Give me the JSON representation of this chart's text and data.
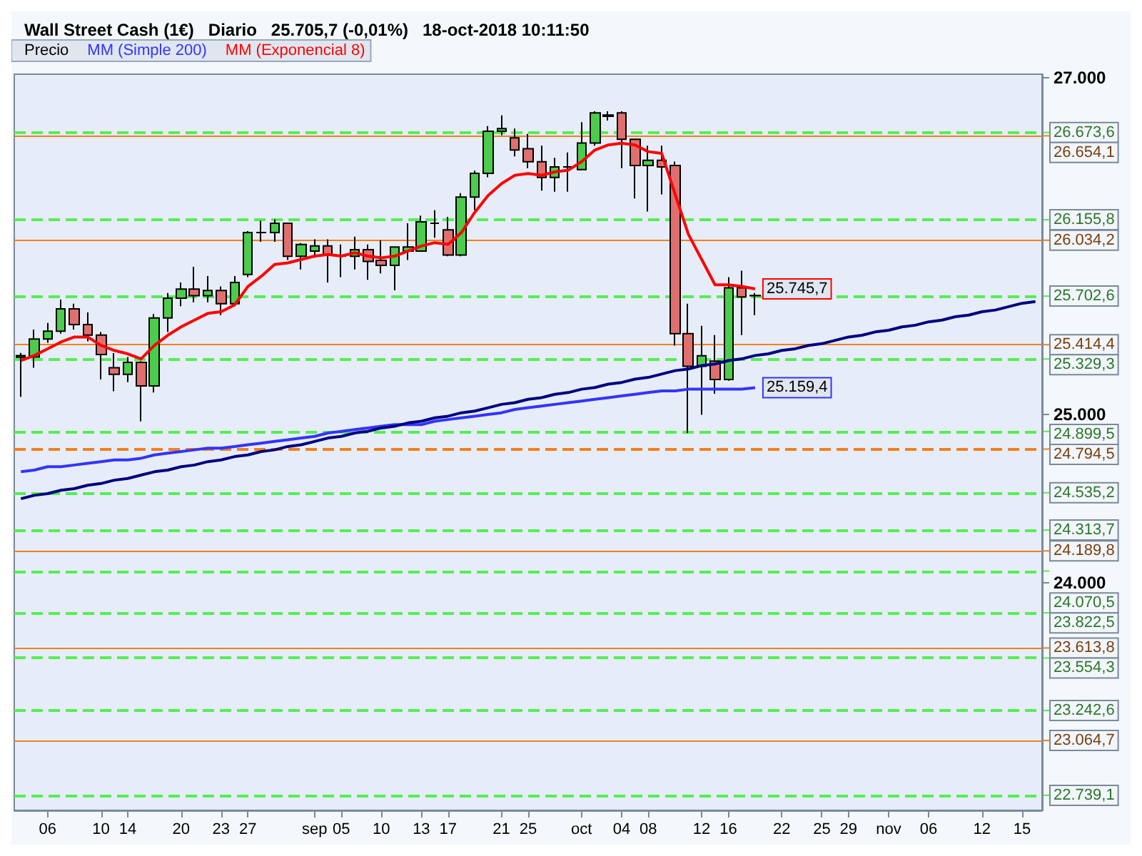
{
  "chart_data": {
    "type": "candlestick",
    "title": "Wall Street Cash (1€)   Diario   25.705,7 (-0,01%)   18-oct-2018 10:11:50",
    "categories": [
      null,
      null,
      "06",
      null,
      null,
      null,
      "10",
      null,
      "14",
      null,
      null,
      null,
      "20",
      null,
      null,
      "23",
      null,
      "27",
      null,
      null,
      null,
      null,
      "sep",
      null,
      "05",
      null,
      null,
      "10",
      null,
      null,
      "13",
      null,
      "17",
      null,
      null,
      null,
      "21",
      null,
      "25",
      null,
      null,
      null,
      "oct",
      null,
      null,
      "04",
      null,
      "08",
      null,
      null,
      null,
      "12",
      null,
      "16",
      null,
      null,
      null,
      "22",
      null,
      null,
      "25",
      null,
      "29",
      null,
      null,
      "nov",
      null,
      null,
      "06",
      null,
      null,
      null,
      "12",
      null,
      null,
      "15",
      null
    ],
    "ylim": [
      22650,
      27020
    ],
    "yticks": [
      {
        "value": 24000,
        "label": "24.000"
      },
      {
        "value": 25000,
        "label": "25.000"
      },
      {
        "value": 27000,
        "label": "27.000"
      }
    ],
    "legend": "top left",
    "series": [
      {
        "name": "Precio",
        "ohlc": [
          [
            25340,
            25365,
            25105,
            25350
          ],
          [
            25341,
            25504,
            25278,
            25448
          ],
          [
            25448,
            25543,
            25426,
            25495
          ],
          [
            25495,
            25682,
            25480,
            25627
          ],
          [
            25627,
            25658,
            25504,
            25534
          ],
          [
            25534,
            25606,
            25434,
            25471
          ],
          [
            25471,
            25489,
            25208,
            25356
          ],
          [
            25277,
            25364,
            25138,
            25238
          ],
          [
            25238,
            25341,
            25192,
            25309
          ],
          [
            25309,
            25317,
            24959,
            25169
          ],
          [
            25169,
            25596,
            25130,
            25573
          ],
          [
            25573,
            25721,
            25489,
            25690
          ],
          [
            25690,
            25783,
            25643,
            25744
          ],
          [
            25744,
            25877,
            25666,
            25705
          ],
          [
            25705,
            25822,
            25666,
            25736
          ],
          [
            25736,
            25760,
            25590,
            25658
          ],
          [
            25658,
            25822,
            25643,
            25783
          ],
          [
            25831,
            26088,
            25815,
            26080
          ],
          [
            26080,
            26150,
            26025,
            26080
          ],
          [
            26080,
            26158,
            26025,
            26135
          ],
          [
            26135,
            26135,
            25917,
            25939
          ],
          [
            25939,
            26017,
            25861,
            26009
          ],
          [
            25970,
            26040,
            25931,
            26001
          ],
          [
            26001,
            26040,
            25783,
            25947
          ],
          [
            25940,
            26009,
            25815,
            25940
          ],
          [
            25939,
            26056,
            25861,
            25978
          ],
          [
            25978,
            26009,
            25799,
            25908
          ],
          [
            25915,
            26033,
            25838,
            25885
          ],
          [
            25885,
            25994,
            25737,
            25994
          ],
          [
            25970,
            26135,
            25917,
            25994
          ],
          [
            25970,
            26181,
            25970,
            26143
          ],
          [
            26135,
            26212,
            26049,
            26135
          ],
          [
            26096,
            26173,
            25939,
            25947
          ],
          [
            25947,
            26314,
            25939,
            26291
          ],
          [
            26291,
            26447,
            26213,
            26431
          ],
          [
            26431,
            26712,
            26408,
            26681
          ],
          [
            26681,
            26775,
            26658,
            26697
          ],
          [
            26642,
            26697,
            26532,
            26570
          ],
          [
            26577,
            26665,
            26462,
            26500
          ],
          [
            26500,
            26595,
            26329,
            26407
          ],
          [
            26407,
            26524,
            26322,
            26469
          ],
          [
            26470,
            26555,
            26322,
            26470
          ],
          [
            26454,
            26735,
            26454,
            26611
          ],
          [
            26611,
            26800,
            26595,
            26790
          ],
          [
            26770,
            26800,
            26745,
            26778
          ],
          [
            26790,
            26800,
            26462,
            26634
          ],
          [
            26634,
            26634,
            26282,
            26478
          ],
          [
            26478,
            26595,
            26205,
            26509
          ],
          [
            26509,
            26595,
            26306,
            26470
          ],
          [
            26478,
            26501,
            25409,
            25480
          ],
          [
            25480,
            25658,
            24889,
            25286
          ],
          [
            25286,
            25526,
            24998,
            25348
          ],
          [
            25317,
            25471,
            25123,
            25208
          ],
          [
            25208,
            25815,
            25200,
            25752
          ],
          [
            25752,
            25853,
            25471,
            25698
          ],
          [
            25705,
            25721,
            25590,
            25706
          ],
          null,
          null,
          null,
          null,
          null,
          null,
          null,
          null,
          null,
          null,
          null,
          null,
          null,
          null,
          null,
          null,
          null,
          null,
          null,
          null,
          null
        ],
        "colors": [
          "#4ccc4c",
          "#4ccc4c",
          "#4ccc4c",
          "#4ccc4c",
          "#e07070",
          "#e07070",
          "#e07070",
          "#e07070",
          "#4ccc4c",
          "#e07070",
          "#4ccc4c",
          "#4ccc4c",
          "#4ccc4c",
          "#e07070",
          "#4ccc4c",
          "#e07070",
          "#4ccc4c",
          "#4ccc4c",
          "#000000",
          "#4ccc4c",
          "#e07070",
          "#4ccc4c",
          "#4ccc4c",
          "#e07070",
          "#000000",
          "#4ccc4c",
          "#e07070",
          "#e07070",
          "#4ccc4c",
          "#4ccc4c",
          "#4ccc4c",
          "#000000",
          "#e07070",
          "#4ccc4c",
          "#4ccc4c",
          "#4ccc4c",
          "#4ccc4c",
          "#e07070",
          "#e07070",
          "#e07070",
          "#4ccc4c",
          "#000000",
          "#4ccc4c",
          "#4ccc4c",
          "#4ccc4c",
          "#e07070",
          "#e07070",
          "#4ccc4c",
          "#e07070",
          "#e07070",
          "#e07070",
          "#4ccc4c",
          "#e07070",
          "#4ccc4c",
          "#e07070",
          "#4ccc4c",
          null,
          null,
          null,
          null,
          null,
          null,
          null,
          null,
          null,
          null,
          null,
          null,
          null,
          null,
          null,
          null,
          null,
          null,
          null,
          null,
          null
        ]
      },
      {
        "name": "MM (Simple 200)",
        "type": "line",
        "color": "#3333ff",
        "values": [
          24660,
          24670,
          24690,
          24690,
          24700,
          24710,
          24720,
          24730,
          24730,
          24740,
          24760,
          24770,
          24780,
          24790,
          24800,
          24800,
          24810,
          24820,
          24830,
          24840,
          24850,
          24860,
          24870,
          24890,
          24900,
          24910,
          24920,
          24930,
          24940,
          24940,
          24940,
          24960,
          24970,
          24980,
          24990,
          25000,
          25010,
          25030,
          25040,
          25050,
          25060,
          25070,
          25080,
          25090,
          25100,
          25110,
          25120,
          25130,
          25140,
          25140,
          25150,
          25150,
          25150,
          25150,
          25150,
          25159.4,
          null,
          null,
          null,
          null,
          null,
          null,
          null,
          null,
          null,
          null,
          null,
          null,
          null,
          null,
          null,
          null,
          null,
          null,
          null,
          null,
          null
        ],
        "value_labels": [
          null,
          null,
          null,
          null,
          null,
          null,
          null,
          null,
          null,
          null,
          null,
          null,
          null,
          null,
          null,
          null,
          null,
          null,
          null,
          null,
          null,
          null,
          null,
          null,
          null,
          null,
          null,
          null,
          null,
          null,
          null,
          null,
          null,
          null,
          null,
          null,
          null,
          null,
          null,
          null,
          null,
          null,
          null,
          null,
          null,
          null,
          null,
          null,
          null,
          null,
          null,
          null,
          null,
          null,
          null,
          "25.159,4",
          null,
          null,
          null,
          null,
          null,
          null,
          null,
          null,
          null,
          null,
          null,
          null,
          null,
          null,
          null,
          null,
          null,
          null,
          null,
          null,
          null
        ]
      },
      {
        "name": "MM (Exponencial 8)",
        "type": "line",
        "color": "#ff0000",
        "values": [
          25320,
          25350,
          25390,
          25430,
          25460,
          25460,
          25410,
          25380,
          25360,
          25330,
          25410,
          25470,
          25520,
          25560,
          25600,
          25610,
          25650,
          25760,
          25820,
          25890,
          25900,
          25920,
          25940,
          25950,
          25940,
          25960,
          25940,
          25930,
          25940,
          25970,
          26000,
          26020,
          26010,
          26080,
          26200,
          26300,
          26370,
          26420,
          26430,
          26420,
          26440,
          26450,
          26500,
          26570,
          26600,
          26610,
          26600,
          26560,
          26550,
          26310,
          26070,
          25920,
          25770,
          25770,
          25760,
          25745.7,
          null,
          null,
          null,
          null,
          null,
          null,
          null,
          null,
          null,
          null,
          null,
          null,
          null,
          null,
          null,
          null,
          null,
          null,
          null,
          null,
          null
        ],
        "value_labels": [
          null,
          null,
          null,
          null,
          null,
          null,
          null,
          null,
          null,
          null,
          null,
          null,
          null,
          null,
          null,
          null,
          null,
          null,
          null,
          null,
          null,
          null,
          null,
          null,
          null,
          null,
          null,
          null,
          null,
          null,
          null,
          null,
          null,
          null,
          null,
          null,
          null,
          null,
          null,
          null,
          null,
          null,
          null,
          null,
          null,
          null,
          null,
          null,
          null,
          null,
          null,
          null,
          null,
          null,
          null,
          "25.745,7",
          null,
          null,
          null,
          null,
          null,
          null,
          null,
          null,
          null,
          null,
          null,
          null,
          null,
          null,
          null,
          null,
          null,
          null,
          null,
          null,
          null
        ],
        "colors": [
          "#339900",
          "#339900",
          "#339900",
          "#339900",
          "#339900",
          "#ff0000",
          "#ff0000",
          "#ff0000",
          "#ff0000",
          "#ff0000",
          "#339900",
          "#339900",
          "#339900",
          "#339900",
          "#339900",
          "#339900",
          "#339900",
          "#339900",
          "#339900",
          "#339900",
          "#339900",
          "#339900",
          "#339900",
          "#ff0000",
          "#ff0000",
          "#ff0000",
          "#ff0000",
          "#ff0000",
          "#339900",
          "#339900",
          "#339900",
          "#ff0000",
          "#ff0000",
          "#339900",
          "#339900",
          "#339900",
          "#339900",
          "#339900",
          "#ff0000",
          "#ff0000",
          "#339900",
          "#339900",
          "#339900",
          "#339900",
          "#339900",
          "#ff0000",
          "#ff0000",
          "#ff0000",
          "#ff0000",
          "#ff0000",
          "#ff0000",
          "#ff0000",
          "#ff0000",
          "#ff0000",
          "#ff0000",
          "#ff0000",
          null,
          null,
          null,
          null,
          null,
          null,
          null,
          null,
          null,
          null,
          null,
          null,
          null,
          null,
          null,
          null,
          null,
          null,
          null,
          null,
          null
        ]
      },
      {
        "type": "line",
        "color": "#000080",
        "values": [
          24500,
          24520,
          24530,
          24550,
          24560,
          24580,
          24590,
          24610,
          24620,
          24640,
          24660,
          24670,
          24690,
          24700,
          24720,
          24730,
          24750,
          24760,
          24780,
          24790,
          24810,
          24820,
          24840,
          24860,
          24870,
          24890,
          24900,
          24920,
          24930,
          24950,
          24960,
          24980,
          24990,
          25010,
          25020,
          25040,
          25060,
          25070,
          25090,
          25100,
          25120,
          25130,
          25150,
          25160,
          25180,
          25190,
          25210,
          25220,
          25240,
          25260,
          25270,
          25290,
          25300,
          25320,
          25330,
          25350,
          25360,
          25380,
          25390,
          25410,
          25420,
          25440,
          25460,
          25470,
          25490,
          25500,
          25520,
          25530,
          25550,
          25560,
          25580,
          25590,
          25610,
          25620,
          25640,
          25660,
          25670
        ]
      }
    ],
    "ref_lines": [
      {
        "axis": "y",
        "value": 26673.6,
        "label": "26.673,6",
        "color": "#55ee55",
        "line_style": "dashed"
      },
      {
        "axis": "y",
        "value": 26654.1,
        "label": "26.654,1",
        "color": "#f08020",
        "line_style": "solid"
      },
      {
        "axis": "y",
        "value": 26155.8,
        "label": "26.155,8",
        "color": "#55ee55",
        "line_style": "dashed"
      },
      {
        "axis": "y",
        "value": 26034.2,
        "label": "26.034,2",
        "color": "#f08020",
        "line_style": "solid"
      },
      {
        "axis": "y",
        "value": 25702.6,
        "label": "25.702,6",
        "color": "#55ee55",
        "line_style": "dashed"
      },
      {
        "axis": "y",
        "value": 25414.4,
        "label": "25.414,4",
        "color": "#f08020",
        "line_style": "solid"
      },
      {
        "axis": "y",
        "value": 25329.3,
        "label": "25.329,3",
        "color": "#55ee55",
        "line_style": "dashed"
      },
      {
        "axis": "y",
        "value": 24899.5,
        "label": "24.899,5",
        "color": "#55ee55",
        "line_style": "dashed"
      },
      {
        "axis": "y",
        "value": 24794.5,
        "label": "24.794,5",
        "color": "#f08020",
        "line_style": "dashed"
      },
      {
        "axis": "y",
        "value": 24535.2,
        "label": "24.535,2",
        "color": "#55ee55",
        "line_style": "dashed"
      },
      {
        "axis": "y",
        "value": 24313.7,
        "label": "24.313,7",
        "color": "#55ee55",
        "line_style": "dashed"
      },
      {
        "axis": "y",
        "value": 24189.8,
        "label": "24.189,8",
        "color": "#f08020",
        "line_style": "solid"
      },
      {
        "axis": "y",
        "value": 24070.5,
        "label": "24.070,5",
        "color": "#55ee55",
        "line_style": "dashed"
      },
      {
        "axis": "y",
        "value": 23822.5,
        "label": "23.822,5",
        "color": "#55ee55",
        "line_style": "dashed"
      },
      {
        "axis": "y",
        "value": 23613.8,
        "label": "23.613,8",
        "color": "#f08020",
        "line_style": "solid"
      },
      {
        "axis": "y",
        "value": 23554.3,
        "label": "23.554,3",
        "color": "#55ee55",
        "line_style": "dashed"
      },
      {
        "axis": "y",
        "value": 23242.6,
        "label": "23.242,6",
        "color": "#55ee55",
        "line_style": "dashed"
      },
      {
        "axis": "y",
        "value": 23064.7,
        "label": "23.064,7",
        "color": "#f08020",
        "line_style": "solid"
      },
      {
        "axis": "y",
        "value": 22739.1,
        "label": "22.739,1",
        "color": "#55ee55",
        "line_style": "dashed"
      }
    ]
  }
}
